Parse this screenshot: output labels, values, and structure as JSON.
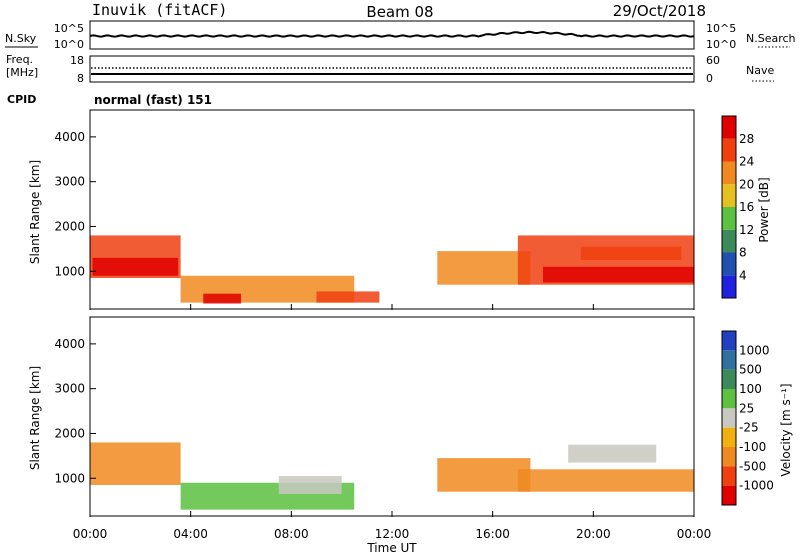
{
  "header": {
    "radar": "Inuvik (fitACF)",
    "beam": "Beam 08",
    "date": "29/Oct/2018"
  },
  "panels": {
    "noise": {
      "left_label": "N.Sky",
      "right_label": "N.Search",
      "left_ticks": [
        "10^5",
        "10^0"
      ],
      "right_ticks": [
        "10^5",
        "10^0"
      ]
    },
    "freq": {
      "left_label_1": "Freq.",
      "left_label_2": "[MHz]",
      "left_ticks": [
        "18",
        "8"
      ],
      "right_label": "Nave",
      "right_ticks": [
        "60",
        "0"
      ]
    },
    "cpid": {
      "label": "CPID",
      "text": "normal (fast) 151"
    }
  },
  "axes": {
    "y_label": "Slant Range [km]",
    "y_ticks": [
      "1000",
      "2000",
      "3000",
      "4000"
    ],
    "x_ticks": [
      "00:00",
      "04:00",
      "08:00",
      "12:00",
      "16:00",
      "20:00",
      "00:00"
    ],
    "x_label": "Time UT"
  },
  "colorbars": {
    "power": {
      "title": "Power [dB]",
      "labels": [
        "4",
        "8",
        "12",
        "16",
        "20",
        "24",
        "28"
      ],
      "colors": [
        "#2020e0",
        "#2050b0",
        "#3a8a5a",
        "#5cc040",
        "#e6c020",
        "#f08a20",
        "#f04010",
        "#e00000"
      ]
    },
    "velocity": {
      "title": "Velocity [m s⁻¹]",
      "labels": [
        "1000",
        "500",
        "100",
        "25",
        "-25",
        "-100",
        "-500",
        "-1000"
      ],
      "colors": [
        "#2040c0",
        "#3070a0",
        "#3a8a5a",
        "#5cc040",
        "#c8c8c0",
        "#f0b010",
        "#f08a20",
        "#f04010",
        "#e00000"
      ]
    }
  },
  "chart_data": [
    {
      "type": "heatmap",
      "title": "Power [dB]",
      "xlabel": "Time UT",
      "ylabel": "Slant Range [km]",
      "xlim": [
        0,
        24
      ],
      "ylim": [
        180,
        4600
      ],
      "regions": [
        {
          "x": [
            0.0,
            3.6
          ],
          "y": [
            850,
            1800
          ],
          "value_db": 24
        },
        {
          "x": [
            0.1,
            3.5
          ],
          "y": [
            900,
            1300
          ],
          "value_db": 28
        },
        {
          "x": [
            3.6,
            10.5
          ],
          "y": [
            300,
            900
          ],
          "value_db": 20
        },
        {
          "x": [
            4.5,
            6.0
          ],
          "y": [
            280,
            500
          ],
          "value_db": 28
        },
        {
          "x": [
            9.0,
            11.5
          ],
          "y": [
            300,
            550
          ],
          "value_db": 24
        },
        {
          "x": [
            13.8,
            17.5
          ],
          "y": [
            700,
            1450
          ],
          "value_db": 20
        },
        {
          "x": [
            17.0,
            24.0
          ],
          "y": [
            700,
            1800
          ],
          "value_db": 24
        },
        {
          "x": [
            18.0,
            24.0
          ],
          "y": [
            750,
            1100
          ],
          "value_db": 28
        },
        {
          "x": [
            19.5,
            23.5
          ],
          "y": [
            1250,
            1550
          ],
          "value_db": 24
        }
      ]
    },
    {
      "type": "heatmap",
      "title": "Velocity [m s⁻¹]",
      "xlabel": "Time UT",
      "ylabel": "Slant Range [km]",
      "xlim": [
        0,
        24
      ],
      "ylim": [
        180,
        4600
      ],
      "regions": [
        {
          "x": [
            0.0,
            3.6
          ],
          "y": [
            850,
            1800
          ],
          "value_ms": -300
        },
        {
          "x": [
            3.6,
            10.5
          ],
          "y": [
            300,
            900
          ],
          "value_ms": 50
        },
        {
          "x": [
            7.5,
            10.0
          ],
          "y": [
            650,
            1050
          ],
          "value_ms": 0
        },
        {
          "x": [
            13.8,
            17.5
          ],
          "y": [
            700,
            1450
          ],
          "value_ms": -300
        },
        {
          "x": [
            17.0,
            24.0
          ],
          "y": [
            700,
            1200
          ],
          "value_ms": -300
        },
        {
          "x": [
            19.0,
            22.5
          ],
          "y": [
            1350,
            1750
          ],
          "value_ms": 0
        }
      ]
    }
  ]
}
